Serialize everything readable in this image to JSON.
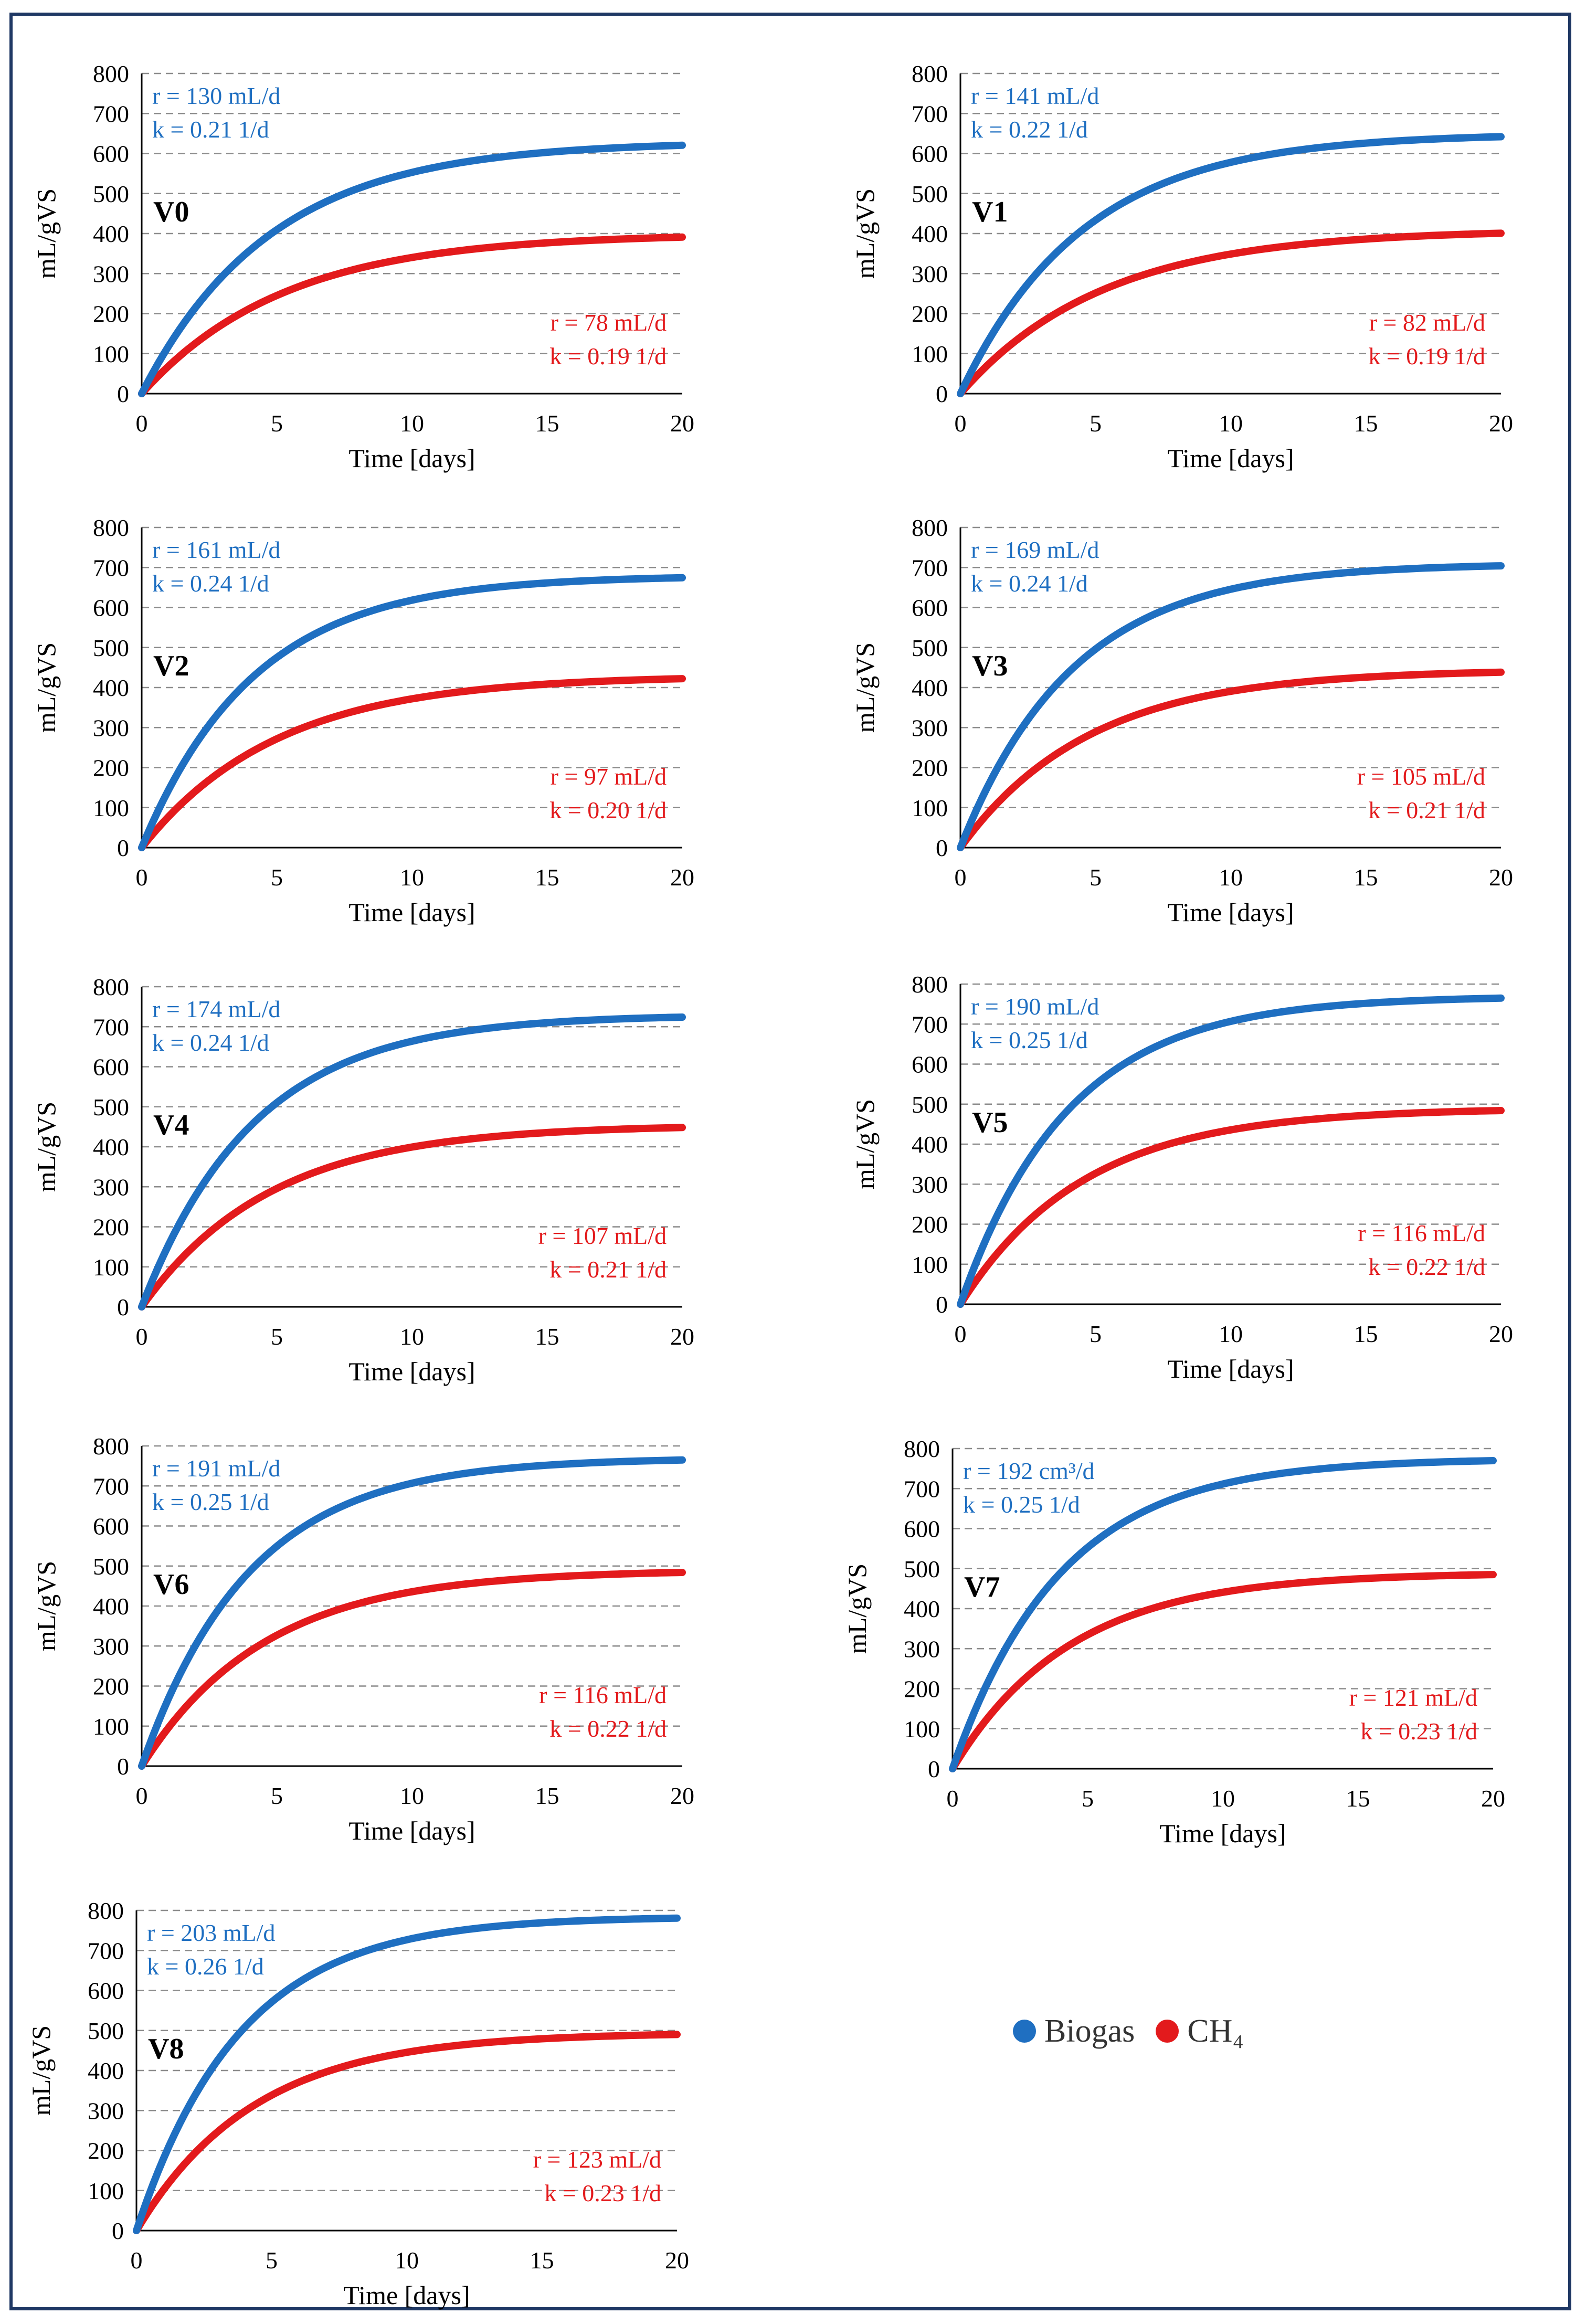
{
  "colors": {
    "biogas": "#1f6fc1",
    "ch4": "#e31a1c",
    "border": "#1f3864"
  },
  "legend": {
    "biogas_label": "Biogas",
    "ch4_label": "CH₄"
  },
  "chart_data": [
    {
      "type": "line",
      "panel": "V0",
      "xlabel": "Time [days]",
      "ylabel": "mL/gVS",
      "xlim": [
        0,
        20
      ],
      "ylim": [
        0,
        800
      ],
      "xticks": [
        0,
        5,
        10,
        15,
        20
      ],
      "yticks": [
        0,
        100,
        200,
        300,
        400,
        500,
        600,
        700,
        800
      ],
      "biogas": {
        "r_text": "r = 130 mL/d",
        "k_text": "k = 0.21 1/d",
        "ymax": 630,
        "k": 0.21
      },
      "ch4": {
        "r_text": "r = 78 mL/d",
        "k_text": "k = 0.19 1/d",
        "ymax": 400,
        "k": 0.19
      }
    },
    {
      "type": "line",
      "panel": "V1",
      "xlabel": "Time [days]",
      "ylabel": "mL/gVS",
      "xlim": [
        0,
        20
      ],
      "ylim": [
        0,
        800
      ],
      "xticks": [
        0,
        5,
        10,
        15,
        20
      ],
      "yticks": [
        0,
        100,
        200,
        300,
        400,
        500,
        600,
        700,
        800
      ],
      "biogas": {
        "r_text": "r = 141 mL/d",
        "k_text": "k = 0.22 1/d",
        "ymax": 650,
        "k": 0.22
      },
      "ch4": {
        "r_text": "r = 82 mL/d",
        "k_text": "k = 0.19 1/d",
        "ymax": 410,
        "k": 0.19
      }
    },
    {
      "type": "line",
      "panel": "V2",
      "xlabel": "Time [days]",
      "ylabel": "mL/gVS",
      "xlim": [
        0,
        20
      ],
      "ylim": [
        0,
        800
      ],
      "xticks": [
        0,
        5,
        10,
        15,
        20
      ],
      "yticks": [
        0,
        100,
        200,
        300,
        400,
        500,
        600,
        700,
        800
      ],
      "biogas": {
        "r_text": "r = 161 mL/d",
        "k_text": "k = 0.24 1/d",
        "ymax": 680,
        "k": 0.24
      },
      "ch4": {
        "r_text": "r = 97 mL/d",
        "k_text": "k = 0.20 1/d",
        "ymax": 430,
        "k": 0.2
      }
    },
    {
      "type": "line",
      "panel": "V3",
      "xlabel": "Time [days]",
      "ylabel": "mL/gVS",
      "xlim": [
        0,
        20
      ],
      "ylim": [
        0,
        800
      ],
      "xticks": [
        0,
        5,
        10,
        15,
        20
      ],
      "yticks": [
        0,
        100,
        200,
        300,
        400,
        500,
        600,
        700,
        800
      ],
      "biogas": {
        "r_text": "r = 169 mL/d",
        "k_text": "k = 0.24 1/d",
        "ymax": 710,
        "k": 0.24
      },
      "ch4": {
        "r_text": "r = 105 mL/d",
        "k_text": "k = 0.21 1/d",
        "ymax": 445,
        "k": 0.21
      }
    },
    {
      "type": "line",
      "panel": "V4",
      "xlabel": "Time [days]",
      "ylabel": "mL/gVS",
      "xlim": [
        0,
        20
      ],
      "ylim": [
        0,
        800
      ],
      "xticks": [
        0,
        5,
        10,
        15,
        20
      ],
      "yticks": [
        0,
        100,
        200,
        300,
        400,
        500,
        600,
        700,
        800
      ],
      "biogas": {
        "r_text": "r = 174 mL/d",
        "k_text": "k = 0.24 1/d",
        "ymax": 730,
        "k": 0.24
      },
      "ch4": {
        "r_text": "r = 107 mL/d",
        "k_text": "k = 0.21 1/d",
        "ymax": 455,
        "k": 0.21
      }
    },
    {
      "type": "line",
      "panel": "V5",
      "xlabel": "Time [days]",
      "ylabel": "mL/gVS",
      "xlim": [
        0,
        20
      ],
      "ylim": [
        0,
        800
      ],
      "xticks": [
        0,
        5,
        10,
        15,
        20
      ],
      "yticks": [
        0,
        100,
        200,
        300,
        400,
        500,
        600,
        700,
        800
      ],
      "biogas": {
        "r_text": "r = 190 mL/d",
        "k_text": "k = 0.25 1/d",
        "ymax": 770,
        "k": 0.25
      },
      "ch4": {
        "r_text": "r = 116 mL/d",
        "k_text": "k = 0.22 1/d",
        "ymax": 490,
        "k": 0.22
      }
    },
    {
      "type": "line",
      "panel": "V6",
      "xlabel": "Time [days]",
      "ylabel": "mL/gVS",
      "xlim": [
        0,
        20
      ],
      "ylim": [
        0,
        800
      ],
      "xticks": [
        0,
        5,
        10,
        15,
        20
      ],
      "yticks": [
        0,
        100,
        200,
        300,
        400,
        500,
        600,
        700,
        800
      ],
      "biogas": {
        "r_text": "r = 191 mL/d",
        "k_text": "k = 0.25 1/d",
        "ymax": 770,
        "k": 0.25
      },
      "ch4": {
        "r_text": "r = 116 mL/d",
        "k_text": "k = 0.22 1/d",
        "ymax": 490,
        "k": 0.22
      }
    },
    {
      "type": "line",
      "panel": "V7",
      "xlabel": "Time [days]",
      "ylabel": "mL/gVS",
      "xlim": [
        0,
        20
      ],
      "ylim": [
        0,
        800
      ],
      "xticks": [
        0,
        5,
        10,
        15,
        20
      ],
      "yticks": [
        0,
        100,
        200,
        300,
        400,
        500,
        600,
        700,
        800
      ],
      "biogas": {
        "r_text": "r = 192 cm³/d",
        "k_text": "k = 0.25 1/d",
        "ymax": 775,
        "k": 0.25
      },
      "ch4": {
        "r_text": "r = 121 mL/d",
        "k_text": "k = 0.23 1/d",
        "ymax": 490,
        "k": 0.23
      }
    },
    {
      "type": "line",
      "panel": "V8",
      "xlabel": "Time [days]",
      "ylabel": "mL/gVS",
      "xlim": [
        0,
        20
      ],
      "ylim": [
        0,
        800
      ],
      "xticks": [
        0,
        5,
        10,
        15,
        20
      ],
      "yticks": [
        0,
        100,
        200,
        300,
        400,
        500,
        600,
        700,
        800
      ],
      "biogas": {
        "r_text": "r = 203 mL/d",
        "k_text": "k = 0.26 1/d",
        "ymax": 785,
        "k": 0.26
      },
      "ch4": {
        "r_text": "r = 123 mL/d",
        "k_text": "k = 0.23 1/d",
        "ymax": 495,
        "k": 0.23
      }
    }
  ]
}
